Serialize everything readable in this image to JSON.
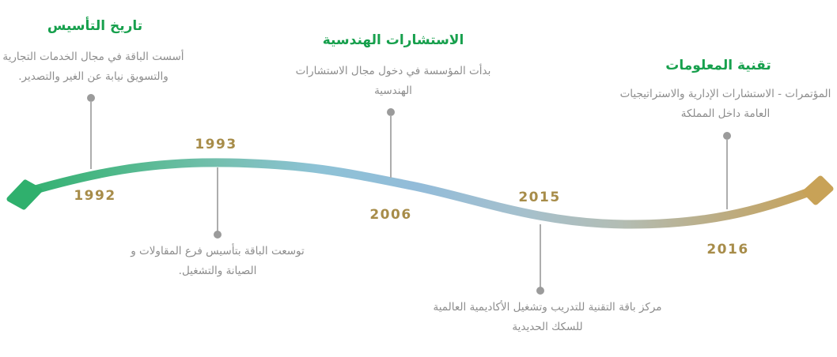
{
  "timeline": {
    "colors": {
      "header_green": "#17a04d",
      "year_gold": "#a78c49",
      "body_gray": "#8d8d8d",
      "connector_line_gray": "#adadad",
      "connector_dot_gray": "#9b9b9b",
      "curve_gradient": [
        "#2fb06d",
        "#4fb88a",
        "#74bfae",
        "#8ec2d6",
        "#93bcd9",
        "#a5c0cd",
        "#b3bdb4",
        "#bcac82",
        "#c8a257"
      ]
    },
    "events": [
      {
        "year": "1992",
        "title": "تاريخ التأسيس",
        "description": "أسست الباقة في مجال الخدمات التجارية\nوالتسويق نيابة عن الغير والتصدير."
      },
      {
        "year": "1993",
        "title": "",
        "description": "توسعت الباقة بتأسيس فرع المقاولات و\nالصيانة والتشغيل."
      },
      {
        "year": "2006",
        "title": "الاستشارات الهندسية",
        "description": "بدأت المؤسسة في دخول مجال الاستشارات\nالهندسية"
      },
      {
        "year": "2015",
        "title": "",
        "description": "مركز باقة التقنية للتدريب وتشغيل الأكاديمية العالمية\nللسكك الحديدية"
      },
      {
        "year": "2016",
        "title": "تقنية المعلومات",
        "description": "المؤتمرات - الاستشارات الإدارية والاستراتيجيات\nالعامة داخل المملكة"
      }
    ]
  }
}
